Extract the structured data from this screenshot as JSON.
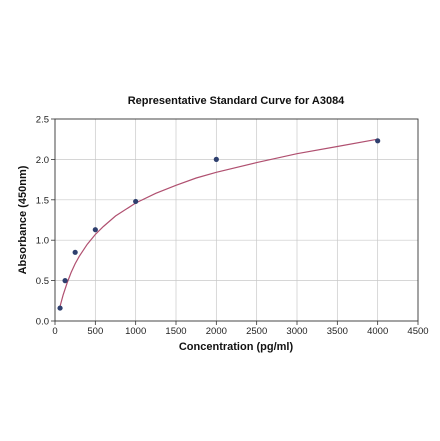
{
  "chart_data": {
    "type": "scatter",
    "title": "Representative Standard Curve for A3084",
    "xlabel": "Concentration (pg/ml)",
    "ylabel": "Absorbance (450nm)",
    "xlim": [
      0,
      4500
    ],
    "ylim": [
      0,
      2.5
    ],
    "xticks": [
      0,
      500,
      1000,
      1500,
      2000,
      2500,
      3000,
      3500,
      4000,
      4500
    ],
    "yticks": [
      0.0,
      0.5,
      1.0,
      1.5,
      2.0,
      2.5
    ],
    "xtick_labels": [
      "0",
      "500",
      "1000",
      "1500",
      "2000",
      "2500",
      "3000",
      "3500",
      "4000",
      "4500"
    ],
    "ytick_labels": [
      "0.0",
      "0.5",
      "1.0",
      "1.5",
      "2.0",
      "2.5"
    ],
    "grid": true,
    "points": [
      {
        "x": 62.5,
        "y": 0.16
      },
      {
        "x": 125,
        "y": 0.5
      },
      {
        "x": 250,
        "y": 0.85
      },
      {
        "x": 500,
        "y": 1.13
      },
      {
        "x": 1000,
        "y": 1.48
      },
      {
        "x": 2000,
        "y": 2.0
      },
      {
        "x": 4000,
        "y": 2.23
      }
    ],
    "fit_curve": [
      {
        "x": 62.5,
        "y": 0.18
      },
      {
        "x": 100,
        "y": 0.32
      },
      {
        "x": 150,
        "y": 0.47
      },
      {
        "x": 200,
        "y": 0.6
      },
      {
        "x": 250,
        "y": 0.71
      },
      {
        "x": 300,
        "y": 0.8
      },
      {
        "x": 400,
        "y": 0.95
      },
      {
        "x": 500,
        "y": 1.07
      },
      {
        "x": 600,
        "y": 1.17
      },
      {
        "x": 750,
        "y": 1.3
      },
      {
        "x": 1000,
        "y": 1.46
      },
      {
        "x": 1250,
        "y": 1.58
      },
      {
        "x": 1500,
        "y": 1.68
      },
      {
        "x": 1750,
        "y": 1.77
      },
      {
        "x": 2000,
        "y": 1.84
      },
      {
        "x": 2500,
        "y": 1.96
      },
      {
        "x": 3000,
        "y": 2.07
      },
      {
        "x": 3500,
        "y": 2.16
      },
      {
        "x": 4000,
        "y": 2.25
      }
    ],
    "colors": {
      "points": "#2e3f6e",
      "curve": "#b05070",
      "grid": "#c8c8c8"
    }
  }
}
